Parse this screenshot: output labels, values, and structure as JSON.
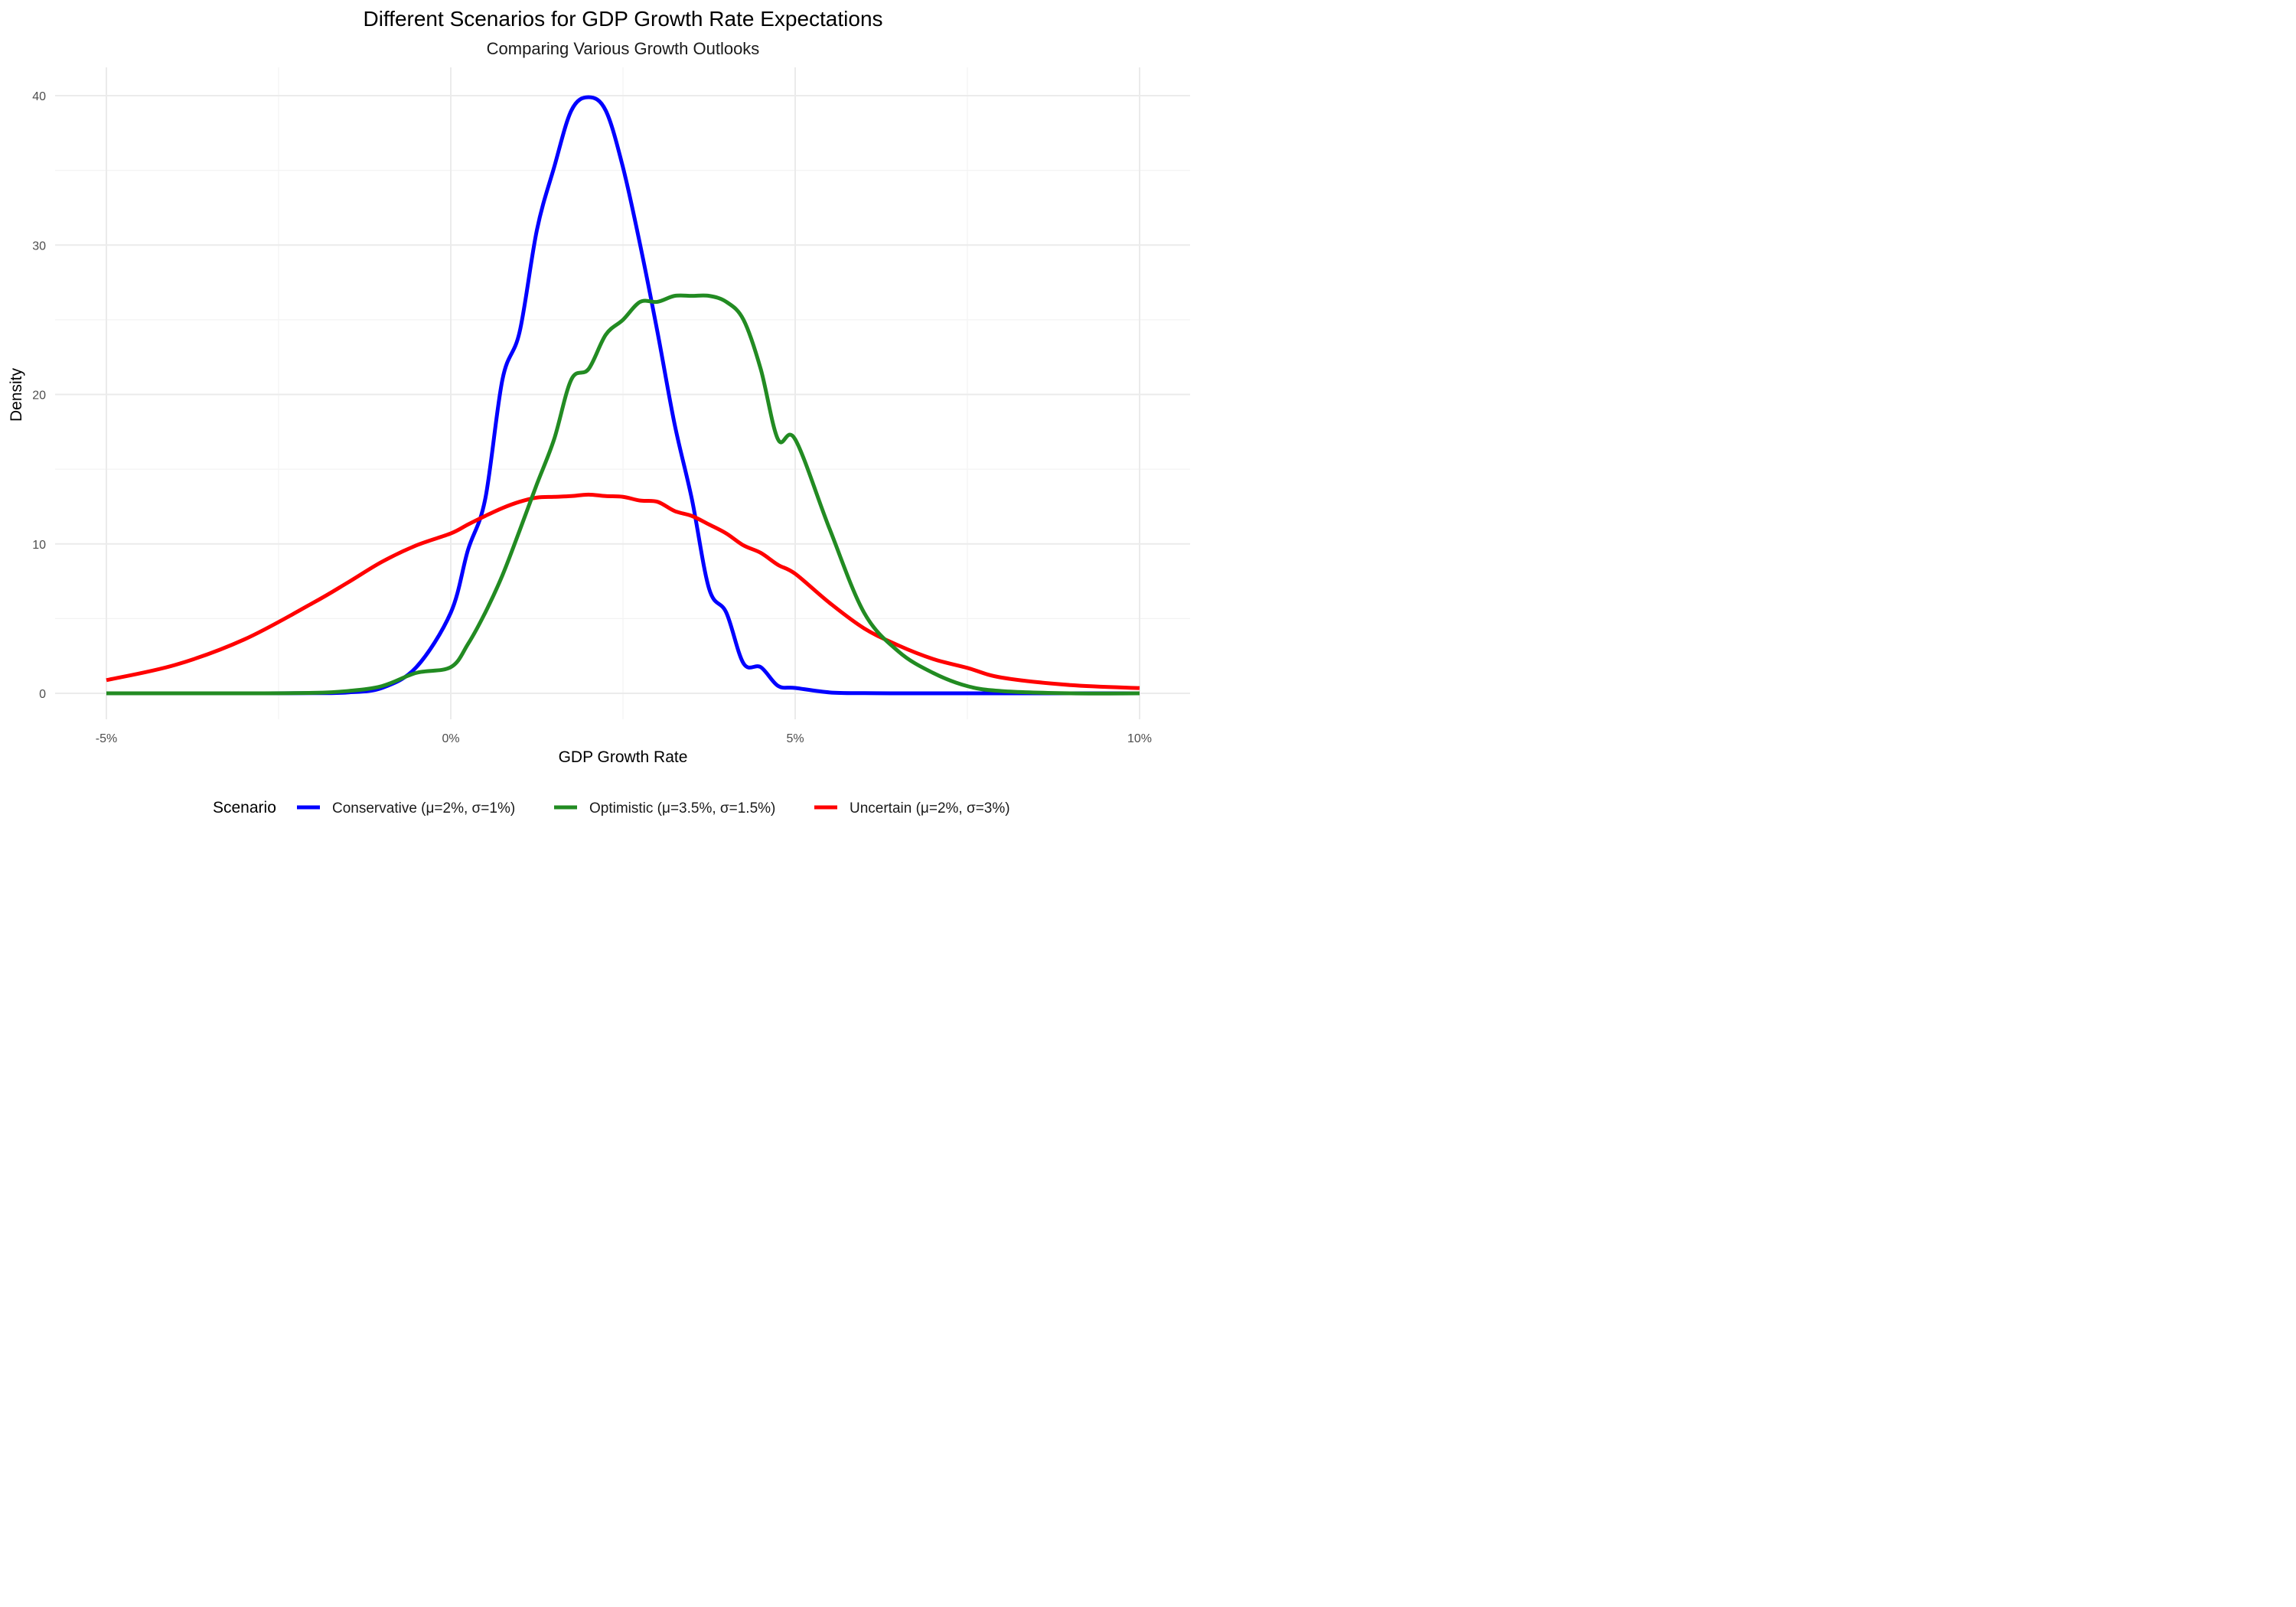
{
  "chart_data": {
    "type": "line",
    "title": "Different Scenarios for GDP Growth Rate Expectations",
    "subtitle": "Comparing Various Growth Outlooks",
    "xlabel": "GDP Growth Rate",
    "ylabel": "Density",
    "xlim": [
      -0.05,
      0.1
    ],
    "ylim": [
      0,
      40
    ],
    "x_ticks": [
      -0.05,
      0,
      0.05,
      0.1
    ],
    "x_tick_labels": [
      "-5%",
      "0%",
      "5%",
      "10%"
    ],
    "y_ticks": [
      0,
      10,
      20,
      30,
      40
    ],
    "y_tick_labels": [
      "0",
      "10",
      "20",
      "30",
      "40"
    ],
    "grid": true,
    "legend_position": "bottom",
    "legend_title": "Scenario",
    "x": [
      -0.05,
      -0.04,
      -0.03,
      -0.02,
      -0.015,
      -0.01,
      -0.005,
      0.0,
      0.0025,
      0.005,
      0.0075,
      0.01,
      0.0125,
      0.015,
      0.0175,
      0.02,
      0.0225,
      0.025,
      0.0275,
      0.03,
      0.0325,
      0.035,
      0.0375,
      0.04,
      0.0425,
      0.045,
      0.0475,
      0.05,
      0.055,
      0.06,
      0.065,
      0.07,
      0.075,
      0.08,
      0.09,
      0.1
    ],
    "series": [
      {
        "name": "Conservative (μ=2%, σ=1%)",
        "color": "#0000FF",
        "values": [
          0.0,
          0.0,
          0.0,
          0.01,
          0.06,
          0.36,
          1.75,
          5.4,
          9.6,
          13.0,
          21.0,
          24.2,
          31.0,
          35.2,
          39.0,
          39.9,
          39.0,
          35.2,
          30.0,
          24.2,
          18.0,
          13.0,
          7.0,
          5.4,
          2.0,
          1.75,
          0.5,
          0.36,
          0.06,
          0.01,
          0.0,
          0.0,
          0.0,
          0.0,
          0.0,
          0.0
        ]
      },
      {
        "name": "Optimistic (μ=3.5%, σ=1.5%)",
        "color": "#228B22",
        "values": [
          0.0,
          0.0,
          0.0,
          0.03,
          0.15,
          0.48,
          1.37,
          1.75,
          3.3,
          5.4,
          7.9,
          10.9,
          14.0,
          17.0,
          21.0,
          21.7,
          24.0,
          25.0,
          26.2,
          26.2,
          26.6,
          26.6,
          26.6,
          26.2,
          25.0,
          21.7,
          17.0,
          17.0,
          11.0,
          5.4,
          2.8,
          1.37,
          0.48,
          0.15,
          0.0,
          0.0
        ]
      },
      {
        "name": "Uncertain (μ=2%, σ=3%)",
        "color": "#FF0000",
        "values": [
          0.88,
          1.9,
          3.6,
          6.05,
          7.4,
          8.8,
          9.9,
          10.7,
          11.3,
          11.87,
          12.4,
          12.82,
          13.1,
          13.15,
          13.2,
          13.3,
          13.2,
          13.15,
          12.9,
          12.82,
          12.2,
          11.87,
          11.3,
          10.7,
          9.9,
          9.4,
          8.6,
          8.0,
          6.05,
          4.35,
          3.2,
          2.3,
          1.7,
          1.05,
          0.55,
          0.35
        ]
      }
    ]
  }
}
